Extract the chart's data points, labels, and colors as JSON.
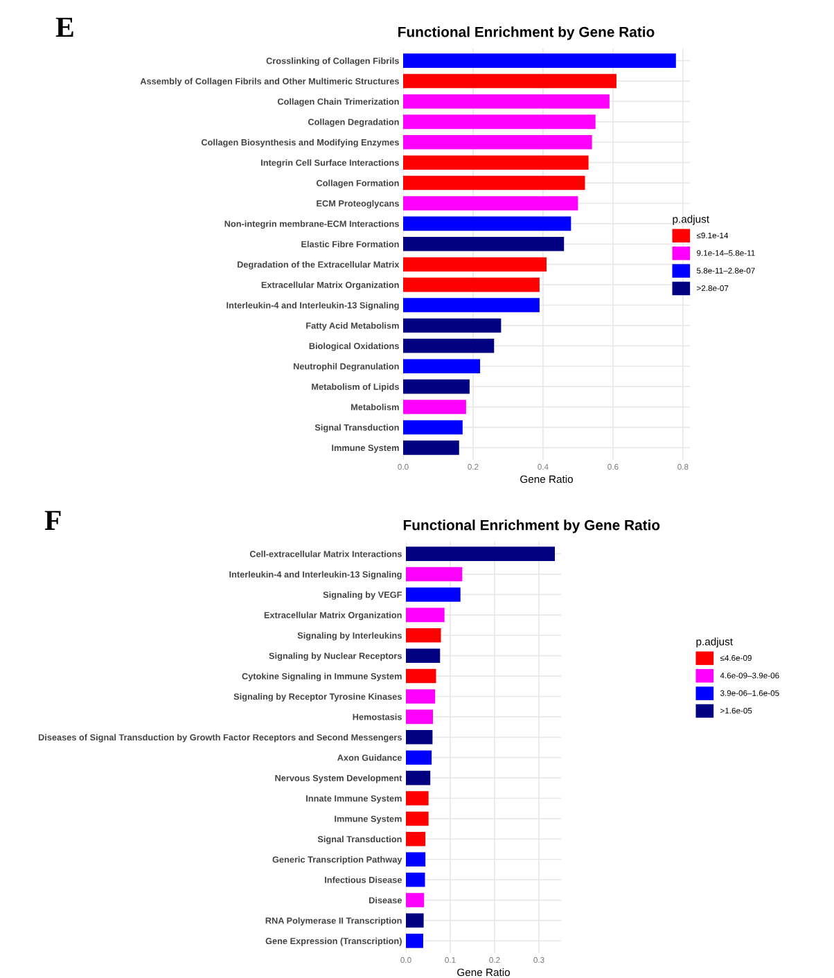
{
  "chart_data": [
    {
      "type": "bar",
      "orientation": "horizontal",
      "title": "Functional Enrichment by Gene Ratio",
      "xlabel": "Gene Ratio",
      "legend_title": "p.adjust",
      "legend": "right",
      "grid": true,
      "annotations": [
        "E"
      ],
      "categories": [
        "Crosslinking of Collagen Fibrils",
        "Assembly of Collagen Fibrils and Other Multimeric Structures",
        "Collagen Chain Trimerization",
        "Collagen Degradation",
        "Collagen Biosynthesis and Modifying Enzymes",
        "Integrin Cell Surface Interactions",
        "Collagen Formation",
        "ECM Proteoglycans",
        "Non-integrin membrane-ECM Interactions",
        "Elastic Fibre Formation",
        "Degradation of the Extracellular Matrix",
        "Extracellular Matrix Organization",
        "Interleukin-4 and Interleukin-13 Signaling",
        "Fatty Acid Metabolism",
        "Biological Oxidations",
        "Neutrophil Degranulation",
        "Metabolism of Lipids",
        "Metabolism",
        "Signal Transduction",
        "Immune System"
      ],
      "xlim": [
        0,
        0.82
      ],
      "xticks": [
        {
          "value": 0,
          "label": "0.0"
        },
        {
          "value": 0.2,
          "label": "0.2"
        },
        {
          "value": 0.4,
          "label": "0.4"
        },
        {
          "value": 0.6,
          "label": "0.6"
        },
        {
          "value": 0.8,
          "label": "0.8"
        }
      ],
      "series": [
        {
          "name": "≤9.1e-14",
          "color": "#ff0000",
          "values": [
            null,
            0.61,
            null,
            null,
            null,
            0.53,
            0.52,
            null,
            null,
            null,
            0.41,
            0.39,
            null,
            null,
            null,
            null,
            null,
            null,
            null,
            null
          ]
        },
        {
          "name": "9.1e-14–5.8e-11",
          "color": "#ff00ff",
          "values": [
            null,
            null,
            0.59,
            0.55,
            0.54,
            null,
            null,
            0.5,
            null,
            null,
            null,
            null,
            null,
            null,
            null,
            null,
            null,
            0.18,
            null,
            null
          ]
        },
        {
          "name": "5.8e-11–2.8e-07",
          "color": "#0000ff",
          "values": [
            0.78,
            null,
            null,
            null,
            null,
            null,
            null,
            null,
            0.48,
            null,
            null,
            null,
            0.39,
            null,
            null,
            0.22,
            null,
            null,
            0.17,
            null
          ]
        },
        {
          "name": ">2.8e-07",
          "color": "#000080",
          "values": [
            null,
            null,
            null,
            null,
            null,
            null,
            null,
            null,
            null,
            0.46,
            null,
            null,
            null,
            0.28,
            0.26,
            null,
            0.19,
            null,
            null,
            0.16
          ]
        }
      ]
    },
    {
      "type": "bar",
      "orientation": "horizontal",
      "title": "Functional Enrichment by Gene Ratio",
      "xlabel": "Gene Ratio",
      "legend_title": "p.adjust",
      "legend": "right",
      "grid": true,
      "annotations": [
        "F"
      ],
      "categories": [
        "Cell-extracellular Matrix Interactions",
        "Interleukin-4 and Interleukin-13 Signaling",
        "Signaling by VEGF",
        "Extracellular Matrix Organization",
        "Signaling by Interleukins",
        "Signaling by Nuclear Receptors",
        "Cytokine Signaling in Immune System",
        "Signaling by Receptor Tyrosine Kinases",
        "Hemostasis",
        "Diseases of Signal Transduction by Growth Factor Receptors and Second Messengers",
        "Axon Guidance",
        "Nervous System Development",
        "Innate Immune System",
        "Immune System",
        "Signal Transduction",
        "Generic Transcription Pathway",
        "Infectious Disease",
        "Disease",
        "RNA Polymerase II Transcription",
        "Gene Expression (Transcription)"
      ],
      "xlim": [
        0,
        0.35
      ],
      "xticks": [
        {
          "value": 0,
          "label": "0.0"
        },
        {
          "value": 0.1,
          "label": "0.1"
        },
        {
          "value": 0.2,
          "label": "0.2"
        },
        {
          "value": 0.3,
          "label": "0.3"
        }
      ],
      "series": [
        {
          "name": "≤4.6e-09",
          "color": "#ff0000",
          "values": [
            null,
            null,
            null,
            null,
            0.079,
            null,
            0.068,
            null,
            null,
            null,
            null,
            null,
            0.051,
            0.051,
            0.044,
            null,
            null,
            null,
            null,
            null
          ]
        },
        {
          "name": "4.6e-09–3.9e-06",
          "color": "#ff00ff",
          "values": [
            null,
            0.127,
            null,
            0.087,
            null,
            null,
            null,
            0.066,
            0.061,
            null,
            null,
            null,
            null,
            null,
            null,
            null,
            null,
            0.041,
            null,
            null
          ]
        },
        {
          "name": "3.9e-06–1.6e-05",
          "color": "#0000ff",
          "values": [
            null,
            null,
            0.123,
            null,
            null,
            null,
            null,
            null,
            null,
            null,
            0.058,
            null,
            null,
            null,
            null,
            0.044,
            0.043,
            null,
            null,
            0.039
          ]
        },
        {
          "name": ">1.6e-05",
          "color": "#000080",
          "values": [
            0.336,
            null,
            null,
            null,
            null,
            0.077,
            null,
            null,
            null,
            0.06,
            null,
            0.055,
            null,
            null,
            null,
            null,
            null,
            null,
            0.04,
            null
          ]
        }
      ]
    }
  ]
}
